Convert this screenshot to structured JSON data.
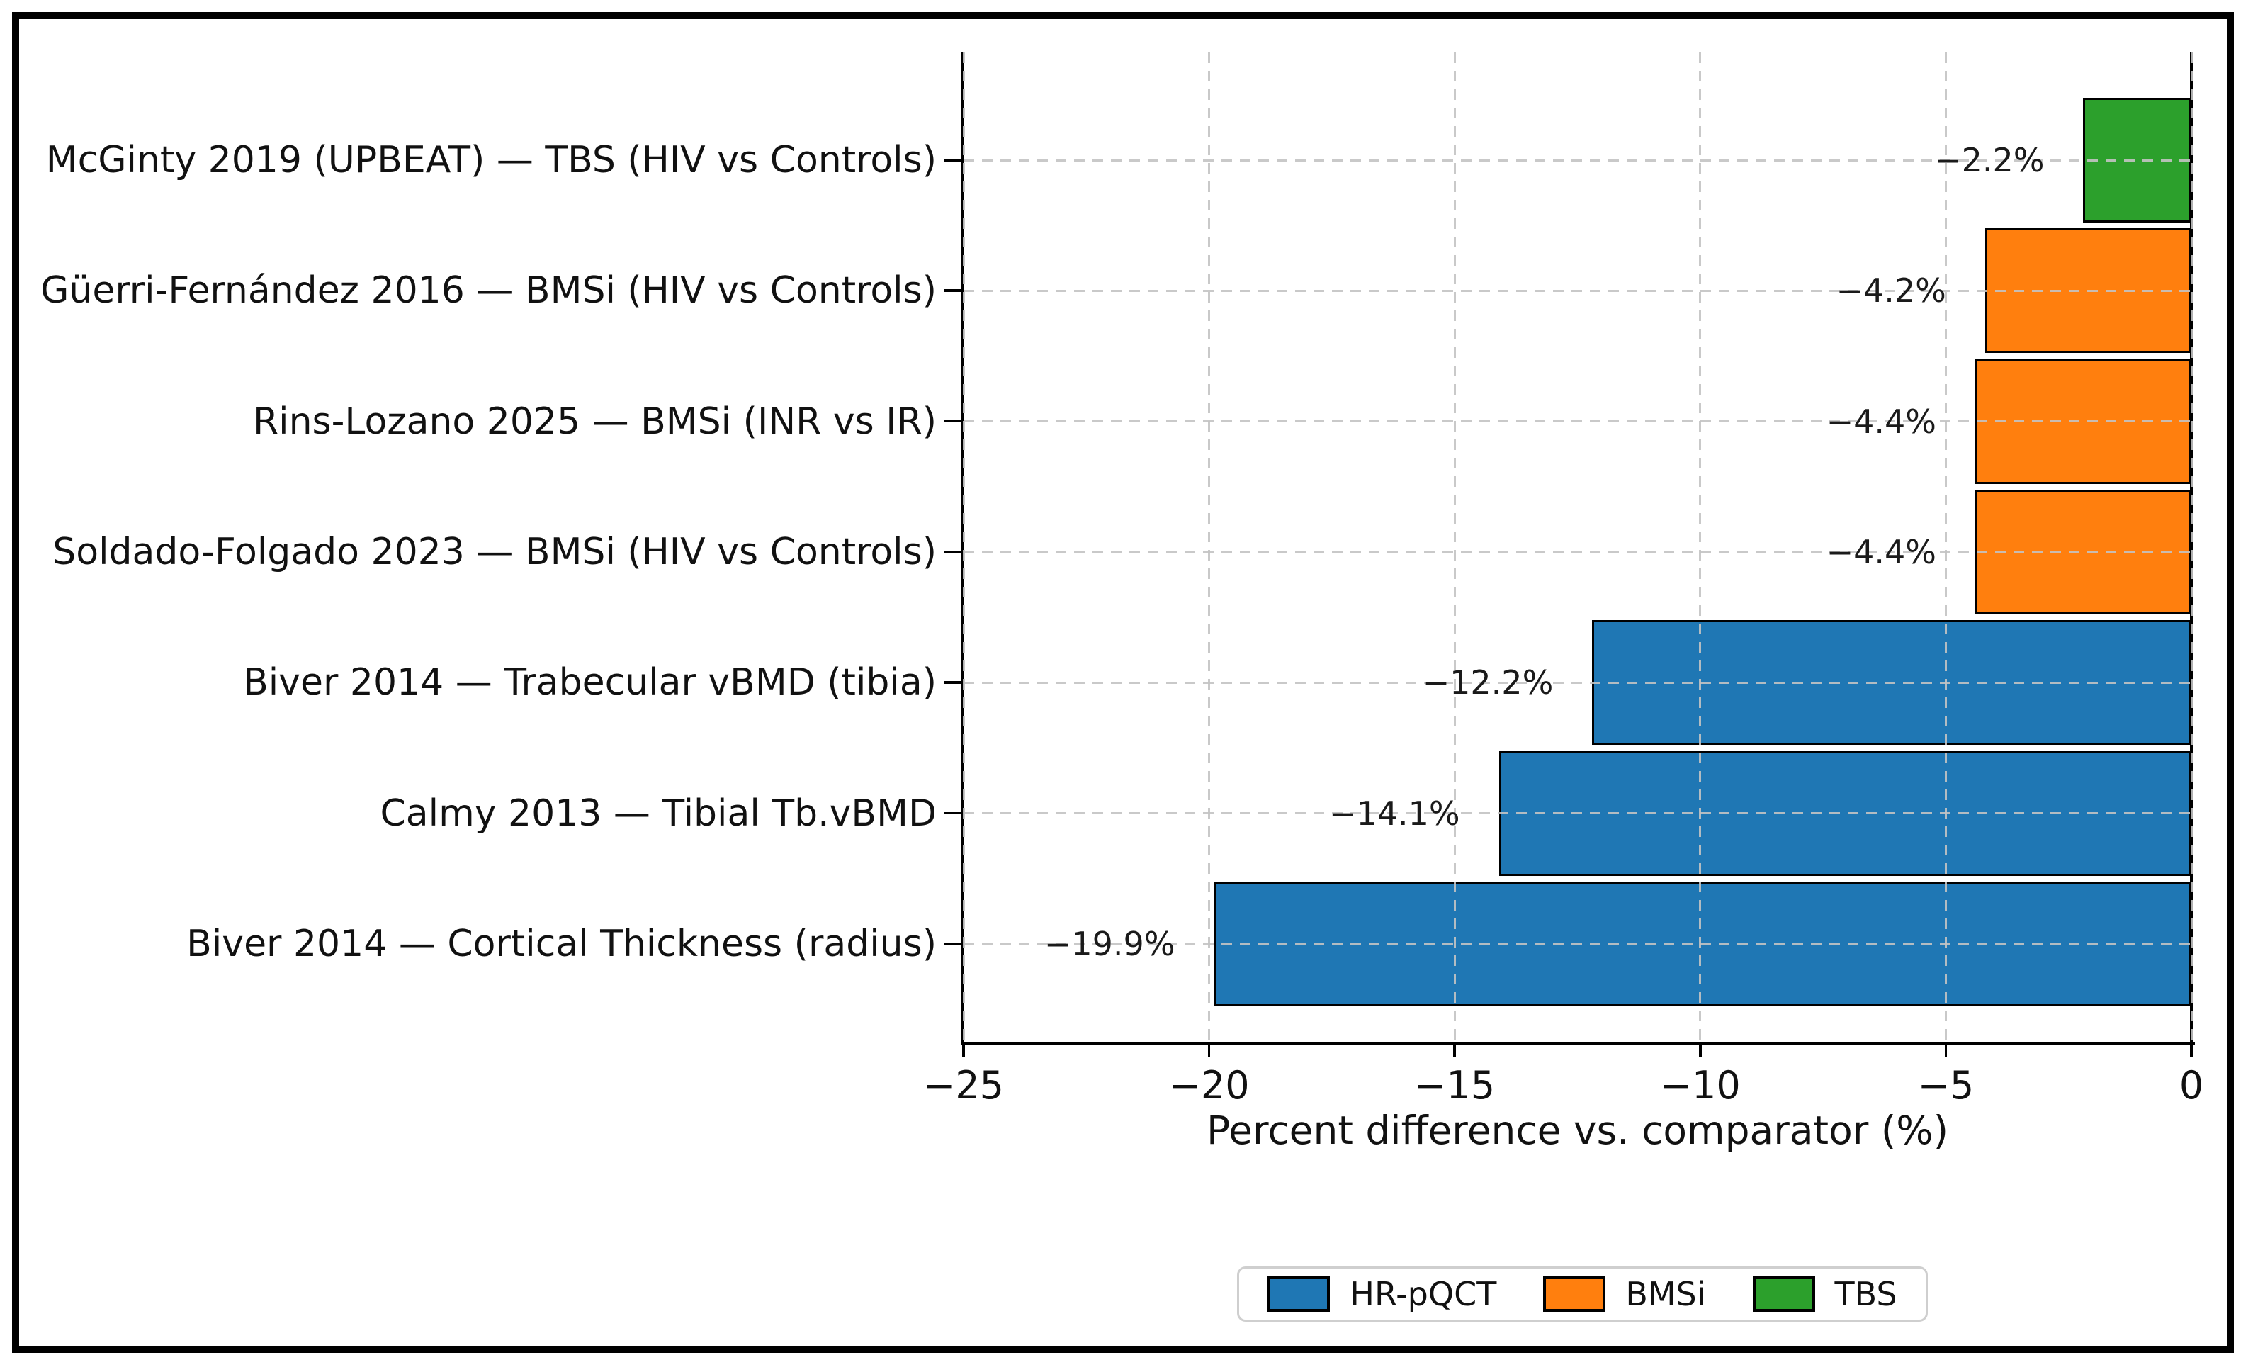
{
  "chart_data": {
    "type": "bar",
    "orientation": "horizontal",
    "xlabel": "Percent difference vs. comparator (%)",
    "xlim": [
      -25,
      0
    ],
    "xticks": [
      -25,
      -20,
      -15,
      -10,
      -5,
      0
    ],
    "xtick_labels": [
      "−25",
      "−20",
      "−15",
      "−10",
      "−5",
      "0"
    ],
    "grid": "dashed gray gridlines on both axes, drawn over bars",
    "bar_edge_color": "#000000",
    "bars": [
      {
        "category": "McGinty 2019 (UPBEAT) — TBS (HIV vs Controls)",
        "value": -2.2,
        "value_label": "−2.2%",
        "series": "TBS"
      },
      {
        "category": "Güerri-Fernández 2016 — BMSi (HIV vs Controls)",
        "value": -4.2,
        "value_label": "−4.2%",
        "series": "BMSi"
      },
      {
        "category": "Rins-Lozano 2025 — BMSi (INR vs IR)",
        "value": -4.4,
        "value_label": "−4.4%",
        "series": "BMSi"
      },
      {
        "category": "Soldado-Folgado 2023 — BMSi (HIV vs Controls)",
        "value": -4.4,
        "value_label": "−4.4%",
        "series": "BMSi"
      },
      {
        "category": "Biver 2014 — Trabecular vBMD (tibia)",
        "value": -12.2,
        "value_label": "−12.2%",
        "series": "HR-pQCT"
      },
      {
        "category": "Calmy 2013 — Tibial Tb.vBMD",
        "value": -14.1,
        "value_label": "−14.1%",
        "series": "HR-pQCT"
      },
      {
        "category": "Biver 2014 — Cortical Thickness (radius)",
        "value": -19.9,
        "value_label": "−19.9%",
        "series": "HR-pQCT"
      }
    ],
    "series_colors": {
      "HR-pQCT": "#1f77b4",
      "BMSi": "#ff7f0e",
      "TBS": "#2ca02c"
    },
    "legend_position": "bottom center, outside plot",
    "legend": [
      {
        "label": "HR-pQCT",
        "color": "#1f77b4"
      },
      {
        "label": "BMSi",
        "color": "#ff7f0e"
      },
      {
        "label": "TBS",
        "color": "#2ca02c"
      }
    ]
  }
}
